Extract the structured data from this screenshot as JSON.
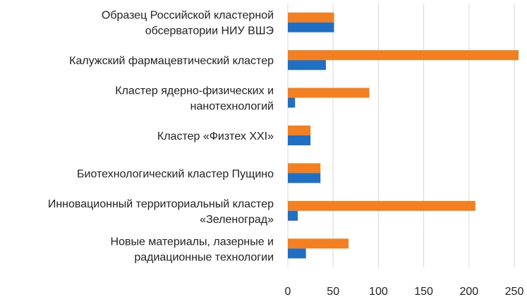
{
  "chart_data": {
    "type": "bar",
    "orientation": "horizontal",
    "categories": [
      [
        "Образец Российской кластерной",
        "обсерватории НИУ ВШЭ"
      ],
      [
        "Калужский фармацевтический кластер"
      ],
      [
        "Кластер ядерно-физических и",
        "нанотехнологий"
      ],
      [
        "Кластер «Физтех XXI»"
      ],
      [
        "Биотехнологический кластер Пущино"
      ],
      [
        "Инновационный территориальный кластер",
        "«Зеленоград»"
      ],
      [
        "Новые материалы, лазерные и",
        "радиационные технологии"
      ]
    ],
    "series": [
      {
        "color": "#1f6fc5",
        "values": [
          51,
          42,
          8,
          25,
          36,
          11,
          20
        ]
      },
      {
        "color": "#f47f20",
        "values": [
          51,
          256,
          90,
          25,
          36,
          207,
          67
        ]
      }
    ],
    "xlim": [
      0,
      250
    ],
    "xticks": [
      "0",
      "50",
      "100",
      "150",
      "200",
      "250"
    ],
    "grid": true,
    "legend": "none"
  }
}
